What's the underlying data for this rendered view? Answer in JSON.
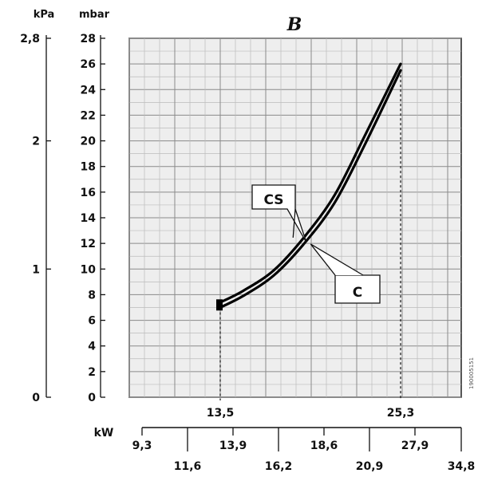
{
  "chart_data": {
    "type": "line",
    "title": "B",
    "units": {
      "kpa": "kPa",
      "mbar": "mbar",
      "kw": "kW"
    },
    "mbar_axis": {
      "range": [
        0,
        28
      ],
      "ticks": [
        "0",
        "2",
        "4",
        "6",
        "8",
        "10",
        "12",
        "14",
        "16",
        "18",
        "20",
        "22",
        "24",
        "26",
        "28"
      ]
    },
    "kpa_axis": {
      "range": [
        0,
        2.8
      ],
      "ticks": [
        "0",
        "1",
        "2",
        "2,8"
      ]
    },
    "kw_axis_top": [
      "13,5",
      "25,3"
    ],
    "kw_axis_row1": [
      "9,3",
      "13,9",
      "18,6",
      "27,9"
    ],
    "kw_axis_row2": [
      "11,6",
      "16,2",
      "20,9",
      "34,8"
    ],
    "x_range_kw": [
      9.3,
      34.8
    ],
    "series": [
      {
        "name": "CS",
        "points": [
          [
            13.5,
            7.4
          ],
          [
            15,
            8.3
          ],
          [
            17,
            9.9
          ],
          [
            19,
            12.5
          ],
          [
            21,
            15.8
          ],
          [
            23,
            20.5
          ],
          [
            25.3,
            26
          ]
        ]
      },
      {
        "name": "C",
        "points": [
          [
            13.5,
            7.0
          ],
          [
            15,
            7.9
          ],
          [
            17,
            9.5
          ],
          [
            19,
            12.0
          ],
          [
            21,
            15.2
          ],
          [
            23,
            19.8
          ],
          [
            25.3,
            25.5
          ]
        ]
      }
    ],
    "annotations": {
      "cs_label": "CS",
      "c_label": "C"
    },
    "side_code": "190005151",
    "grid": true
  }
}
